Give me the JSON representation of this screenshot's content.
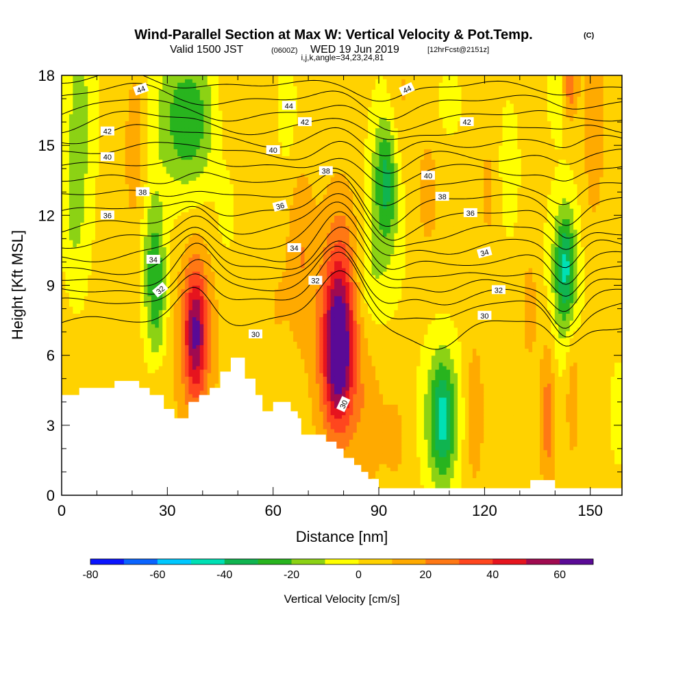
{
  "title": {
    "main": "Wind-Parallel Section at Max W: Vertical Velocity & Pot.Temp.",
    "main_mark": "(C)",
    "valid_a": "Valid 1500 JST",
    "valid_b": "(0600Z)",
    "valid_c": "WED 19 Jun 2019",
    "valid_d": "[12hrFcst@2151z]",
    "indices": "i,j,k,angle=34,23,24,81"
  },
  "chart_data": {
    "type": "heatmap",
    "xlabel": "Distance [nm]",
    "ylabel": "Height [Kft MSL]",
    "xlim": [
      0,
      159
    ],
    "ylim": [
      0,
      18
    ],
    "x_ticks": [
      "0",
      "30",
      "60",
      "90",
      "120",
      "150"
    ],
    "x_tick_values": [
      0,
      30,
      60,
      90,
      120,
      150
    ],
    "y_ticks": [
      "0",
      "3",
      "6",
      "9",
      "12",
      "15",
      "18"
    ],
    "y_tick_values": [
      0,
      3,
      6,
      9,
      12,
      15,
      18
    ],
    "x_minor_step": 10,
    "y_minor_step": 1,
    "colorbar": {
      "title": "Vertical Velocity [cm/s]",
      "tick_labels": [
        "-80",
        "-60",
        "-40",
        "-20",
        "0",
        "20",
        "40",
        "60"
      ],
      "tick_values": [
        -80,
        -60,
        -40,
        -20,
        0,
        20,
        40,
        60
      ],
      "min": -80,
      "max": 70,
      "step": 10,
      "colors": [
        "#0a14ff",
        "#0a64ff",
        "#00c8ff",
        "#00e0b4",
        "#10b450",
        "#28b41e",
        "#8cd214",
        "#ffff00",
        "#ffd200",
        "#ffaa00",
        "#ff7814",
        "#ff461e",
        "#e6141e",
        "#a00a50",
        "#5a0a96"
      ]
    },
    "terrain_kft": [
      [
        0,
        4.3
      ],
      [
        5,
        4.3
      ],
      [
        5,
        4.6
      ],
      [
        15,
        4.6
      ],
      [
        15,
        4.9
      ],
      [
        22,
        4.9
      ],
      [
        22,
        4.6
      ],
      [
        25,
        4.6
      ],
      [
        25,
        4.3
      ],
      [
        29,
        4.3
      ],
      [
        29,
        3.7
      ],
      [
        32,
        3.7
      ],
      [
        32,
        3.3
      ],
      [
        36,
        3.3
      ],
      [
        36,
        4.0
      ],
      [
        39,
        4.0
      ],
      [
        39,
        4.3
      ],
      [
        42,
        4.3
      ],
      [
        42,
        4.6
      ],
      [
        45,
        4.6
      ],
      [
        45,
        5.3
      ],
      [
        48,
        5.3
      ],
      [
        48,
        5.9
      ],
      [
        52,
        5.9
      ],
      [
        52,
        5.0
      ],
      [
        55,
        5.0
      ],
      [
        55,
        4.3
      ],
      [
        57,
        4.3
      ],
      [
        57,
        3.6
      ],
      [
        60,
        3.6
      ],
      [
        60,
        4.0
      ],
      [
        65,
        4.0
      ],
      [
        65,
        3.6
      ],
      [
        67,
        3.6
      ],
      [
        67,
        3.3
      ],
      [
        68,
        3.3
      ],
      [
        68,
        2.6
      ],
      [
        75,
        2.6
      ],
      [
        75,
        2.3
      ],
      [
        78,
        2.3
      ],
      [
        78,
        2.0
      ],
      [
        80,
        2.0
      ],
      [
        80,
        1.6
      ],
      [
        83,
        1.6
      ],
      [
        83,
        1.3
      ],
      [
        85,
        1.3
      ],
      [
        85,
        1.0
      ],
      [
        87,
        1.0
      ],
      [
        87,
        0.7
      ],
      [
        90,
        0.7
      ],
      [
        90,
        0.3
      ],
      [
        133,
        0.3
      ],
      [
        133,
        0.65
      ],
      [
        140,
        0.65
      ],
      [
        140,
        0.3
      ],
      [
        159,
        0.3
      ]
    ],
    "w_features": [
      {
        "x": 38,
        "y": 7.0,
        "sx": 2.3,
        "sy": 2.0,
        "amp": 48
      },
      {
        "x": 38,
        "y": 6.5,
        "sx": 5,
        "sy": 3.2,
        "amp": 12
      },
      {
        "x": 78.5,
        "y": 6.0,
        "sx": 3.0,
        "sy": 2.2,
        "amp": 55
      },
      {
        "x": 78.5,
        "y": 7.0,
        "sx": 5.5,
        "sy": 3.6,
        "amp": 18
      },
      {
        "x": 79,
        "y": 9.5,
        "sx": 3.0,
        "sy": 2.5,
        "amp": 14
      },
      {
        "x": 108,
        "y": 3.2,
        "sx": 2.5,
        "sy": 1.8,
        "amp": -35
      },
      {
        "x": 108,
        "y": 3.5,
        "sx": 4.8,
        "sy": 2.4,
        "amp": -15
      },
      {
        "x": 143,
        "y": 9.8,
        "sx": 2.0,
        "sy": 1.7,
        "amp": -35
      },
      {
        "x": 142,
        "y": 9.0,
        "sx": 3.8,
        "sy": 3.0,
        "amp": -13
      },
      {
        "x": 92,
        "y": 13.5,
        "sx": 2.3,
        "sy": 1.9,
        "amp": -28
      },
      {
        "x": 92,
        "y": 12.5,
        "sx": 4.2,
        "sy": 3.5,
        "amp": -12
      },
      {
        "x": 27,
        "y": 8.5,
        "sx": 2.0,
        "sy": 2.3,
        "amp": -26
      },
      {
        "x": 25,
        "y": 10.5,
        "sx": 2.5,
        "sy": 2.2,
        "amp": -14
      },
      {
        "x": 36,
        "y": 16.0,
        "sx": 5,
        "sy": 1.8,
        "amp": -22
      },
      {
        "x": 34,
        "y": 16.5,
        "sx": 9,
        "sy": 3.2,
        "amp": -12
      },
      {
        "x": 5,
        "y": 16.0,
        "sx": 3,
        "sy": 4.5,
        "amp": -18
      },
      {
        "x": 3,
        "y": 12.0,
        "sx": 2,
        "sy": 2.0,
        "amp": -8
      },
      {
        "x": 47,
        "y": 12.5,
        "sx": 2,
        "sy": 1.6,
        "amp": -12
      },
      {
        "x": 64,
        "y": 16.5,
        "sx": 1.8,
        "sy": 1.5,
        "amp": -12
      },
      {
        "x": 87,
        "y": 9.2,
        "sx": 2.8,
        "sy": 1.5,
        "amp": -12
      },
      {
        "x": 110,
        "y": 16.8,
        "sx": 3,
        "sy": 1.2,
        "amp": -8
      },
      {
        "x": 127,
        "y": 14.0,
        "sx": 2,
        "sy": 2.0,
        "amp": -12
      },
      {
        "x": 141,
        "y": 17.2,
        "sx": 2,
        "sy": 1.2,
        "amp": -14
      },
      {
        "x": 158,
        "y": 3.5,
        "sx": 1.6,
        "sy": 1.5,
        "amp": -12
      },
      {
        "x": 21,
        "y": 15.0,
        "sx": 2.5,
        "sy": 3.0,
        "amp": 15
      },
      {
        "x": 48,
        "y": 16.0,
        "sx": 3,
        "sy": 3.0,
        "amp": 10
      },
      {
        "x": 68,
        "y": 10.5,
        "sx": 2.5,
        "sy": 2.5,
        "amp": 14
      },
      {
        "x": 96,
        "y": 16.5,
        "sx": 2.5,
        "sy": 2.5,
        "amp": 10
      },
      {
        "x": 104,
        "y": 13.0,
        "sx": 2.5,
        "sy": 2.0,
        "amp": 10
      },
      {
        "x": 117,
        "y": 3.5,
        "sx": 2,
        "sy": 2.3,
        "amp": 15
      },
      {
        "x": 121,
        "y": 13.0,
        "sx": 2,
        "sy": 2.0,
        "amp": 8
      },
      {
        "x": 138,
        "y": 3.5,
        "sx": 1.5,
        "sy": 2.5,
        "amp": 22
      },
      {
        "x": 145,
        "y": 4.5,
        "sx": 1.5,
        "sy": 2.0,
        "amp": 15
      },
      {
        "x": 151,
        "y": 16.0,
        "sx": 2,
        "sy": 3.0,
        "amp": 15
      },
      {
        "x": 144,
        "y": 17.5,
        "sx": 1.6,
        "sy": 1.0,
        "amp": 25
      },
      {
        "x": 133,
        "y": 8.0,
        "sx": 2,
        "sy": 2.0,
        "amp": 10
      },
      {
        "x": 95,
        "y": 2.5,
        "sx": 3,
        "sy": 2.0,
        "amp": 8
      },
      {
        "x": 61,
        "y": 8.0,
        "sx": 3,
        "sy": 2.5,
        "amp": 6
      },
      {
        "x": 87,
        "y": 3.0,
        "sx": 3,
        "sy": 2.0,
        "amp": 10
      },
      {
        "x": 28,
        "y": 4.8,
        "sx": 2,
        "sy": 0.8,
        "amp": 8
      }
    ],
    "theta_levels": [
      29,
      30,
      31,
      32,
      33,
      34,
      35,
      36,
      37,
      38,
      39,
      40,
      41,
      42,
      43,
      44,
      45,
      46
    ],
    "theta_base_heights": [
      7.4,
      8.2,
      8.7,
      9.2,
      9.7,
      10.25,
      10.85,
      11.45,
      12.05,
      12.7,
      13.35,
      14.0,
      14.6,
      15.2,
      15.75,
      16.3,
      16.9,
      17.5
    ],
    "theta_bump_features": [
      {
        "x": 38,
        "y": 7.5,
        "sx": 5,
        "sy": 3.5,
        "amp": 1.6
      },
      {
        "x": 79,
        "y": 7.5,
        "sx": 6,
        "sy": 4.5,
        "amp": 2.2
      },
      {
        "x": 108,
        "y": 4.0,
        "sx": 6,
        "sy": 3.5,
        "amp": -1.6
      },
      {
        "x": 143,
        "y": 9.5,
        "sx": 4,
        "sy": 3.5,
        "amp": -1.3
      },
      {
        "x": 92,
        "y": 13.0,
        "sx": 6,
        "sy": 3.5,
        "amp": -1.0
      },
      {
        "x": 20,
        "y": 16.5,
        "sx": 10,
        "sy": 3.0,
        "amp": 0.6
      }
    ],
    "contour_labels": [
      {
        "text": "44",
        "x": 22.5,
        "y": 17.4,
        "angle": -20
      },
      {
        "text": "44",
        "x": 64.5,
        "y": 16.7,
        "angle": 0
      },
      {
        "text": "44",
        "x": 98,
        "y": 17.4,
        "angle": -25
      },
      {
        "text": "42",
        "x": 13,
        "y": 15.6,
        "angle": 0
      },
      {
        "text": "42",
        "x": 69,
        "y": 16.0,
        "angle": 0
      },
      {
        "text": "42",
        "x": 115,
        "y": 16.0,
        "angle": 0
      },
      {
        "text": "40",
        "x": 13,
        "y": 14.5,
        "angle": 0
      },
      {
        "text": "40",
        "x": 60,
        "y": 14.8,
        "angle": 0
      },
      {
        "text": "40",
        "x": 104,
        "y": 13.7,
        "angle": 0
      },
      {
        "text": "38",
        "x": 23,
        "y": 13.0,
        "angle": 0
      },
      {
        "text": "38",
        "x": 75,
        "y": 13.9,
        "angle": 0
      },
      {
        "text": "38",
        "x": 108,
        "y": 12.8,
        "angle": 0
      },
      {
        "text": "36",
        "x": 13,
        "y": 12.0,
        "angle": 0
      },
      {
        "text": "36",
        "x": 62,
        "y": 12.4,
        "angle": -15
      },
      {
        "text": "36",
        "x": 116,
        "y": 12.1,
        "angle": 0
      },
      {
        "text": "34",
        "x": 26,
        "y": 10.1,
        "angle": 0
      },
      {
        "text": "34",
        "x": 66,
        "y": 10.6,
        "angle": 0
      },
      {
        "text": "34",
        "x": 120,
        "y": 10.4,
        "angle": -15
      },
      {
        "text": "32",
        "x": 28,
        "y": 8.8,
        "angle": -40
      },
      {
        "text": "32",
        "x": 72,
        "y": 9.2,
        "angle": 0
      },
      {
        "text": "32",
        "x": 124,
        "y": 8.8,
        "angle": 0
      },
      {
        "text": "30",
        "x": 55,
        "y": 6.9,
        "angle": 0
      },
      {
        "text": "30",
        "x": 80,
        "y": 3.9,
        "angle": -65
      },
      {
        "text": "30",
        "x": 120,
        "y": 7.7,
        "angle": 0
      }
    ]
  }
}
